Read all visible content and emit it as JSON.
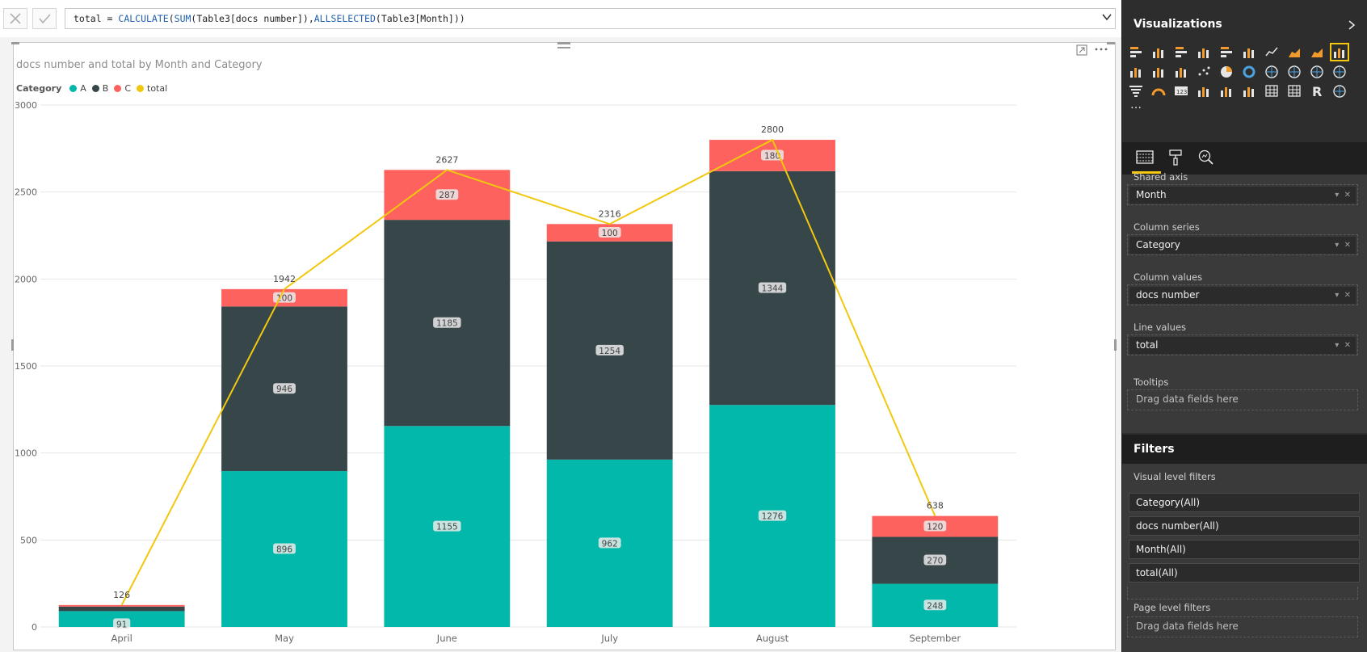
{
  "formula": {
    "prefix": "total = ",
    "fn1": "CALCULATE",
    "mid1": "(",
    "fn2": "SUM",
    "mid2": "(Table3[docs number]),",
    "fn3": "ALLSELECTED",
    "suffix": "(Table3[Month]))"
  },
  "chart_data": {
    "type": "bar",
    "title": "docs number and total by Month and Category",
    "legend_title": "Category",
    "categories": [
      "April",
      "May",
      "June",
      "July",
      "August",
      "September"
    ],
    "series": [
      {
        "name": "A",
        "color": "#01b8aa",
        "values": [
          91,
          896,
          1155,
          962,
          1276,
          248
        ]
      },
      {
        "name": "B",
        "color": "#374649",
        "values": [
          26,
          946,
          1185,
          1254,
          1344,
          270
        ]
      },
      {
        "name": "C",
        "color": "#fd625e",
        "values": [
          9,
          100,
          287,
          100,
          180,
          120
        ]
      }
    ],
    "line": {
      "name": "total",
      "color": "#f2c80f",
      "values": [
        126,
        1942,
        2627,
        2316,
        2800,
        638
      ]
    },
    "ylim": [
      0,
      3000
    ],
    "yticks": [
      "0",
      "500",
      "1000",
      "1500",
      "2000",
      "2500",
      "3000"
    ],
    "grid": true,
    "legend_position": "top-left",
    "stacked": true,
    "hidden_labels": [
      "B0",
      "C0"
    ]
  },
  "viz_pane": {
    "title": "Visualizations",
    "collapse_icon": "chevron-right-icon"
  },
  "fields": {
    "shared_axis_label": "Shared axis",
    "shared_axis_value": "Month",
    "column_series_label": "Column series",
    "column_series_value": "Category",
    "column_values_label": "Column values",
    "column_values_value": "docs number",
    "line_values_label": "Line values",
    "line_values_value": "total",
    "tooltips_label": "Tooltips",
    "tooltips_placeholder": "Drag data fields here"
  },
  "filters": {
    "title": "Filters",
    "visual_level_label": "Visual level filters",
    "items": [
      "Category(All)",
      "docs number(All)",
      "Month(All)",
      "total(All)"
    ],
    "page_level_label": "Page level filters",
    "page_placeholder": "Drag data fields here"
  }
}
